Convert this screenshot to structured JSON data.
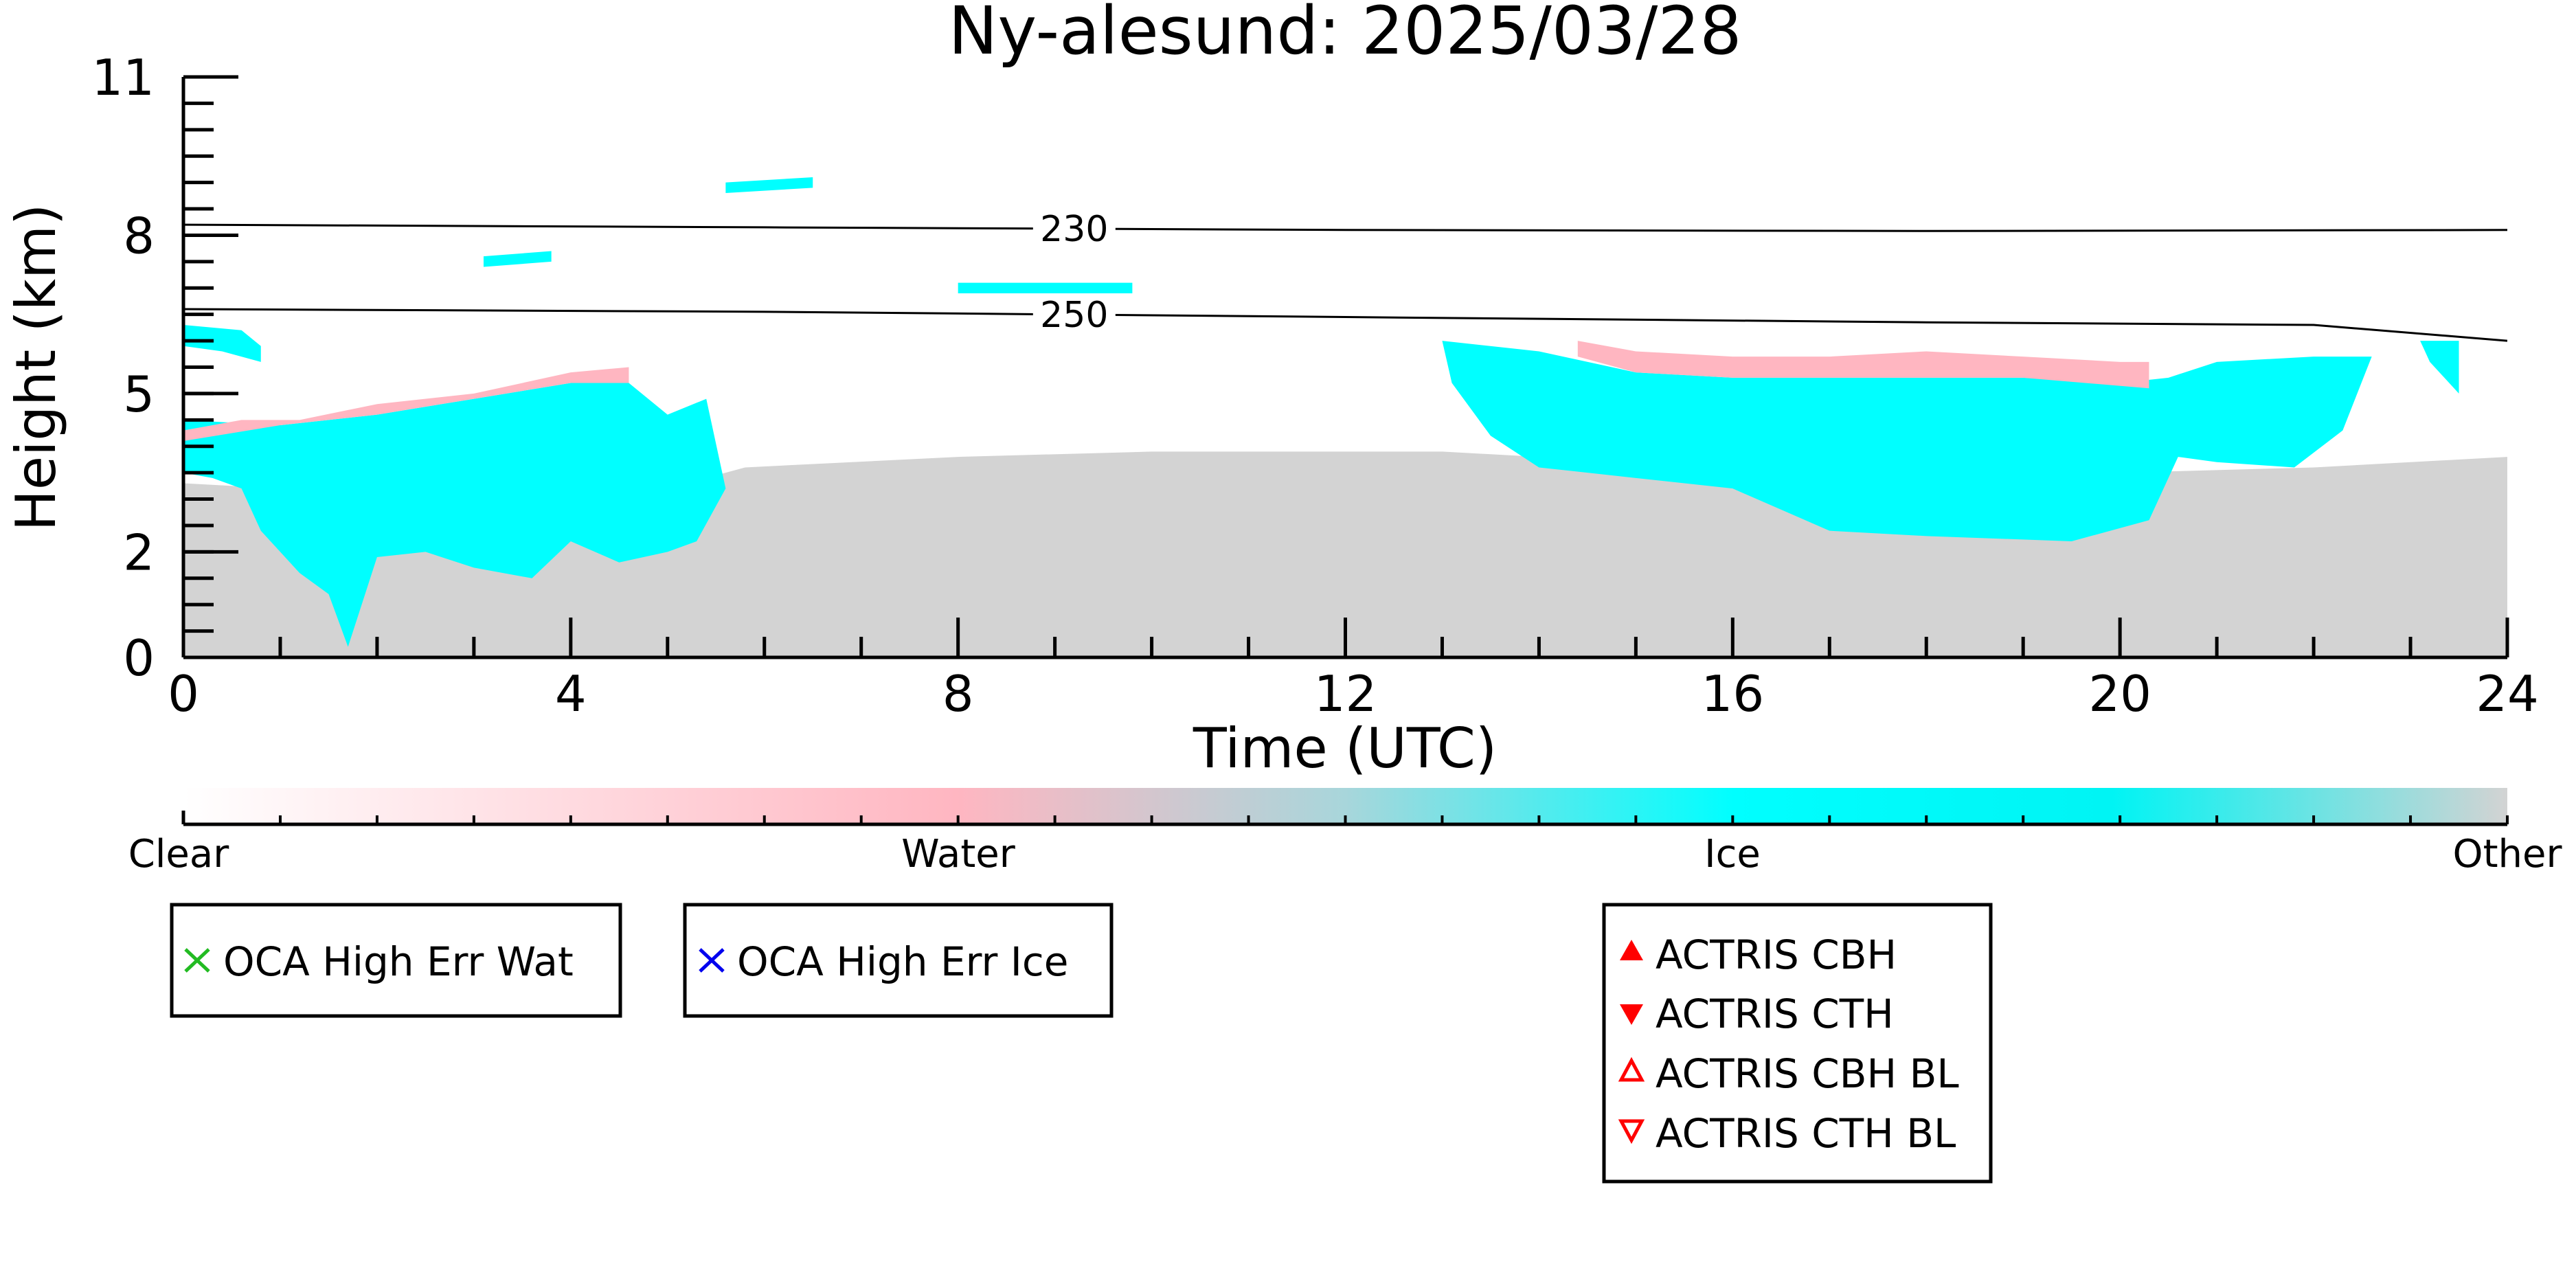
{
  "chart_data": {
    "type": "heatmap",
    "title": "Ny-alesund: 2025/03/28",
    "xlabel": "Time (UTC)",
    "ylabel": "Height (km)",
    "xlim": [
      0,
      24
    ],
    "ylim": [
      0,
      11
    ],
    "x_ticks": [
      "0",
      "4",
      "8",
      "12",
      "16",
      "20",
      "24"
    ],
    "y_ticks": [
      "0",
      "2",
      "5",
      "8",
      "11"
    ],
    "classes": [
      {
        "name": "Clear",
        "color": "#ffffff"
      },
      {
        "name": "Water",
        "color": "#ffb6c1"
      },
      {
        "name": "Ice",
        "color": "#00ffff"
      },
      {
        "name": "Other",
        "color": "#d3d3d3"
      }
    ],
    "colorbar_labels": [
      "Clear",
      "Water",
      "Ice",
      "Other"
    ],
    "regions": [
      {
        "class": "Other",
        "polygon": [
          [
            0,
            0
          ],
          [
            0,
            3.3
          ],
          [
            1,
            3.2
          ],
          [
            2,
            3.0
          ],
          [
            4,
            3.1
          ],
          [
            5.2,
            3.3
          ],
          [
            5.8,
            3.6
          ],
          [
            8,
            3.8
          ],
          [
            10,
            3.9
          ],
          [
            12,
            3.9
          ],
          [
            13,
            3.9
          ],
          [
            14,
            3.8
          ],
          [
            16,
            3.6
          ],
          [
            20,
            3.5
          ],
          [
            22,
            3.6
          ],
          [
            24,
            3.8
          ],
          [
            24,
            0
          ]
        ]
      },
      {
        "class": "Ice",
        "polygon": [
          [
            0,
            4.5
          ],
          [
            1,
            4.4
          ],
          [
            2,
            4.6
          ],
          [
            3,
            4.9
          ],
          [
            4,
            5.2
          ],
          [
            4.6,
            5.2
          ],
          [
            5.0,
            4.6
          ],
          [
            5.4,
            4.9
          ],
          [
            5.6,
            3.2
          ],
          [
            5.3,
            2.2
          ],
          [
            5,
            2.0
          ],
          [
            4.5,
            1.8
          ],
          [
            4,
            2.2
          ],
          [
            3.6,
            1.5
          ],
          [
            3,
            1.7
          ],
          [
            2.5,
            2.0
          ],
          [
            2,
            1.9
          ],
          [
            1.7,
            0.2
          ],
          [
            1.5,
            1.2
          ],
          [
            1.2,
            1.6
          ],
          [
            0.8,
            2.4
          ],
          [
            0.6,
            3.2
          ],
          [
            0.3,
            3.4
          ],
          [
            0,
            3.5
          ]
        ]
      },
      {
        "class": "Water",
        "polygon": [
          [
            0,
            4.3
          ],
          [
            0.6,
            4.5
          ],
          [
            1.2,
            4.5
          ],
          [
            2,
            4.8
          ],
          [
            3,
            5.0
          ],
          [
            4,
            5.4
          ],
          [
            4.6,
            5.5
          ],
          [
            4.6,
            5.2
          ],
          [
            4,
            5.2
          ],
          [
            3,
            4.9
          ],
          [
            2,
            4.6
          ],
          [
            1,
            4.4
          ],
          [
            0,
            4.1
          ]
        ]
      },
      {
        "class": "Ice",
        "polygon": [
          [
            13.0,
            6.0
          ],
          [
            14,
            5.8
          ],
          [
            15,
            5.4
          ],
          [
            16,
            5.3
          ],
          [
            17,
            5.3
          ],
          [
            18,
            5.3
          ],
          [
            19,
            5.3
          ],
          [
            20,
            5.2
          ],
          [
            20.5,
            5.3
          ],
          [
            21,
            5.6
          ],
          [
            22,
            5.7
          ],
          [
            22.6,
            5.7
          ],
          [
            22.3,
            4.3
          ],
          [
            21.8,
            3.6
          ],
          [
            21,
            3.7
          ],
          [
            20.6,
            3.8
          ],
          [
            20.3,
            2.6
          ],
          [
            19.5,
            2.2
          ],
          [
            18,
            2.3
          ],
          [
            17,
            2.4
          ],
          [
            16.5,
            2.8
          ],
          [
            16,
            3.2
          ],
          [
            15,
            3.4
          ],
          [
            14,
            3.6
          ],
          [
            13.5,
            4.2
          ],
          [
            13.1,
            5.2
          ]
        ]
      },
      {
        "class": "Water",
        "polygon": [
          [
            14.4,
            6.0
          ],
          [
            15,
            5.8
          ],
          [
            16,
            5.7
          ],
          [
            17,
            5.7
          ],
          [
            18,
            5.8
          ],
          [
            19,
            5.7
          ],
          [
            20,
            5.6
          ],
          [
            20.3,
            5.6
          ],
          [
            20.3,
            5.1
          ],
          [
            19,
            5.3
          ],
          [
            18,
            5.3
          ],
          [
            17,
            5.3
          ],
          [
            16,
            5.3
          ],
          [
            15,
            5.4
          ],
          [
            14.4,
            5.7
          ]
        ]
      },
      {
        "class": "Ice",
        "polygon": [
          [
            5.6,
            9.0
          ],
          [
            6.5,
            9.1
          ],
          [
            6.5,
            8.9
          ],
          [
            5.6,
            8.8
          ]
        ]
      },
      {
        "class": "Ice",
        "polygon": [
          [
            8,
            7.1
          ],
          [
            9.8,
            7.1
          ],
          [
            9.8,
            6.9
          ],
          [
            8,
            6.9
          ]
        ]
      },
      {
        "class": "Ice",
        "polygon": [
          [
            3.1,
            7.6
          ],
          [
            3.8,
            7.7
          ],
          [
            3.8,
            7.5
          ],
          [
            3.1,
            7.4
          ]
        ]
      },
      {
        "class": "Ice",
        "polygon": [
          [
            0,
            6.3
          ],
          [
            0.6,
            6.2
          ],
          [
            0.8,
            5.9
          ],
          [
            0.8,
            5.6
          ],
          [
            0.4,
            5.8
          ],
          [
            0,
            5.9
          ]
        ]
      },
      {
        "class": "Ice",
        "polygon": [
          [
            23.1,
            6.0
          ],
          [
            23.5,
            6.0
          ],
          [
            23.5,
            5.0
          ],
          [
            23.2,
            5.6
          ]
        ]
      }
    ],
    "isotherms": [
      {
        "label": "230",
        "points": [
          [
            0,
            8.2
          ],
          [
            6,
            8.15
          ],
          [
            12,
            8.1
          ],
          [
            18,
            8.08
          ],
          [
            24,
            8.1
          ]
        ]
      },
      {
        "label": "250",
        "points": [
          [
            0,
            6.6
          ],
          [
            6,
            6.55
          ],
          [
            12,
            6.45
          ],
          [
            18,
            6.35
          ],
          [
            22,
            6.3
          ],
          [
            24,
            6.0
          ]
        ]
      }
    ],
    "legends": [
      {
        "items": [
          {
            "label": "OCA High Err Wat",
            "marker": "x",
            "color": "#22bb22"
          }
        ]
      },
      {
        "items": [
          {
            "label": "OCA High Err Ice",
            "marker": "x",
            "color": "#0000ee"
          }
        ]
      },
      {
        "items": [
          {
            "label": "ACTRIS CBH",
            "marker": "triangle-up-filled",
            "color": "#ff0000"
          },
          {
            "label": "ACTRIS CTH",
            "marker": "triangle-down-filled",
            "color": "#ff0000"
          },
          {
            "label": "ACTRIS CBH BL",
            "marker": "triangle-up-open",
            "color": "#ff0000"
          },
          {
            "label": "ACTRIS CTH BL",
            "marker": "triangle-down-open",
            "color": "#ff0000"
          }
        ]
      }
    ]
  }
}
